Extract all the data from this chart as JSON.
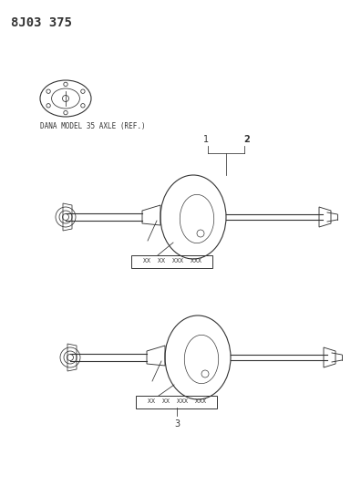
{
  "title": "8J03 375",
  "title_fontsize": 10,
  "background_color": "#ffffff",
  "line_color": "#333333",
  "label_fontsize": 6.5,
  "ref_label": "DANA MODEL 35 AXLE (REF.)",
  "part_numbers_1": "XX  XX  XXX  XXX",
  "part_numbers_2": "XX  XX  XXX  XXX",
  "callout_1": "1",
  "callout_2": "2",
  "callout_3": "3"
}
